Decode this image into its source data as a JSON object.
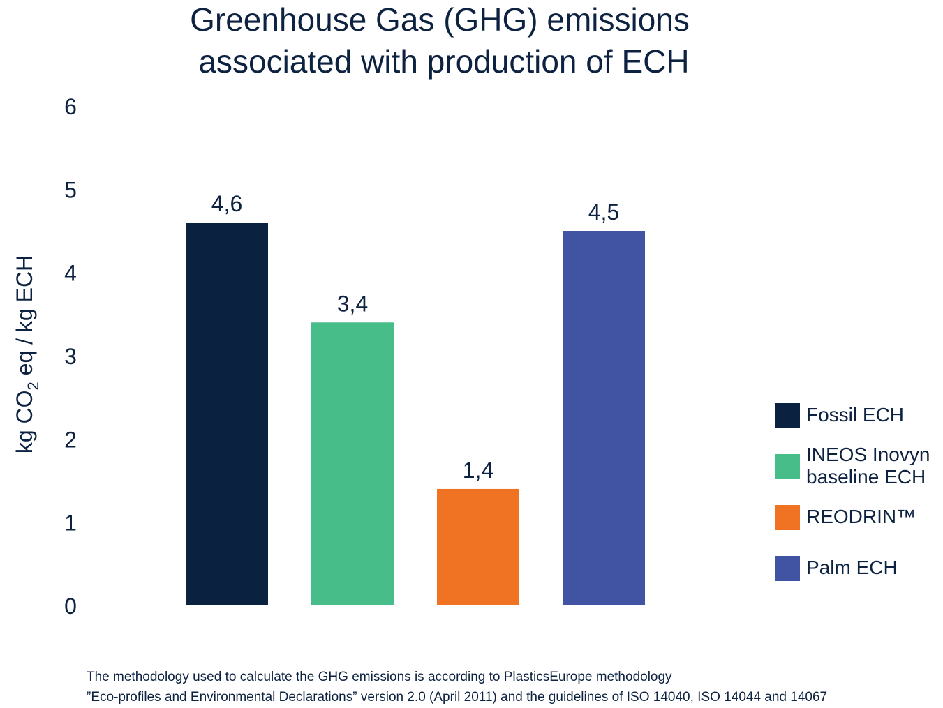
{
  "chart_data": {
    "type": "bar",
    "title_lines": [
      "Greenhouse Gas (GHG) emissions",
      "associated with production of ECH"
    ],
    "ylabel": {
      "prefix": "kg CO",
      "subscript": "2",
      "suffix": " eq / kg ECH"
    },
    "xlabel": "",
    "ylim": [
      0,
      6
    ],
    "yticks": [
      "0",
      "1",
      "2",
      "3",
      "4",
      "5",
      "6"
    ],
    "grid": false,
    "legend_position": "right",
    "categories": [
      "Fossil ECH",
      "INEOS Inovyn baseline ECH",
      "REODRIN™",
      "Palm ECH"
    ],
    "values": [
      4.6,
      3.4,
      1.4,
      4.5
    ],
    "data_labels": [
      "4,6",
      "3,4",
      "1,4",
      "4,5"
    ],
    "colors": [
      "#0a2240",
      "#47bd8a",
      "#f07223",
      "#4154a4"
    ],
    "legend": [
      {
        "lines": [
          "Fossil ECH"
        ],
        "color": "#0a2240"
      },
      {
        "lines": [
          "INEOS Inovyn",
          "baseline ECH"
        ],
        "color": "#47bd8a"
      },
      {
        "lines": [
          "REODRIN™"
        ],
        "color": "#f07223"
      },
      {
        "lines": [
          "Palm ECH"
        ],
        "color": "#4154a4"
      }
    ],
    "footnote_lines": [
      "The methodology used to calculate the GHG emissions is according to PlasticsEurope methodology",
      "”Eco-profiles and Environmental Declarations” version 2.0 (April 2011) and the guidelines of ISO 14040, ISO 14044 and 14067"
    ]
  }
}
